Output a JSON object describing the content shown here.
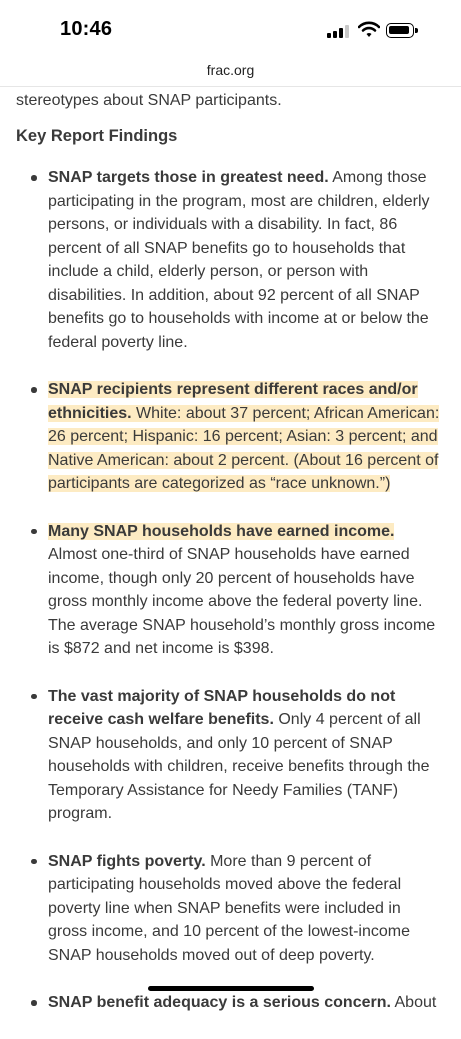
{
  "status": {
    "time": "10:46"
  },
  "browser": {
    "domain": "frac.org"
  },
  "article": {
    "intro_tail": "stereotypes about SNAP participants.",
    "heading": "Key Report Findings",
    "findings": [
      {
        "bold": "SNAP targets those in greatest need.",
        "text": " Among those participating in the program, most are children, elderly persons, or individuals with a disability. In fact, 86 percent of all SNAP benefits go to households that include a child, elderly person, or person with disabilities. In addition, about 92 percent of all SNAP benefits go to households with income at or below the federal poverty line."
      },
      {
        "bold": "SNAP recipients represent different races and/or ethnicities.",
        "text": " White: about 37 percent; African American: 26 percent; Hispanic: 16 percent; Asian: 3 percent; and Native American: about 2 percent. (About 16 percent of participants are categorized as “race unknown.”)"
      },
      {
        "bold": "Many SNAP households have earned income.",
        "text": " Almost one-third of SNAP households have earned income, though only 20 percent of households have gross monthly income above the federal poverty line. The average SNAP household’s monthly gross income is $872 and net income is $398."
      },
      {
        "bold": "The vast majority of SNAP households do not receive cash welfare benefits.",
        "text": " Only 4 percent of all SNAP households, and only 10 percent of SNAP households with children, receive benefits through the Temporary Assistance for Needy Families (TANF) program."
      },
      {
        "bold": "SNAP fights poverty.",
        "text": " More than 9 percent of participating households moved above the federal poverty line when SNAP benefits were included in gross income, and 10 percent of the lowest-income SNAP households moved out of deep poverty."
      },
      {
        "bold": "SNAP benefit adequacy is a serious concern.",
        "text": " About"
      }
    ]
  },
  "colors": {
    "highlight": "#fdebc3",
    "text": "#3a3a3a"
  }
}
